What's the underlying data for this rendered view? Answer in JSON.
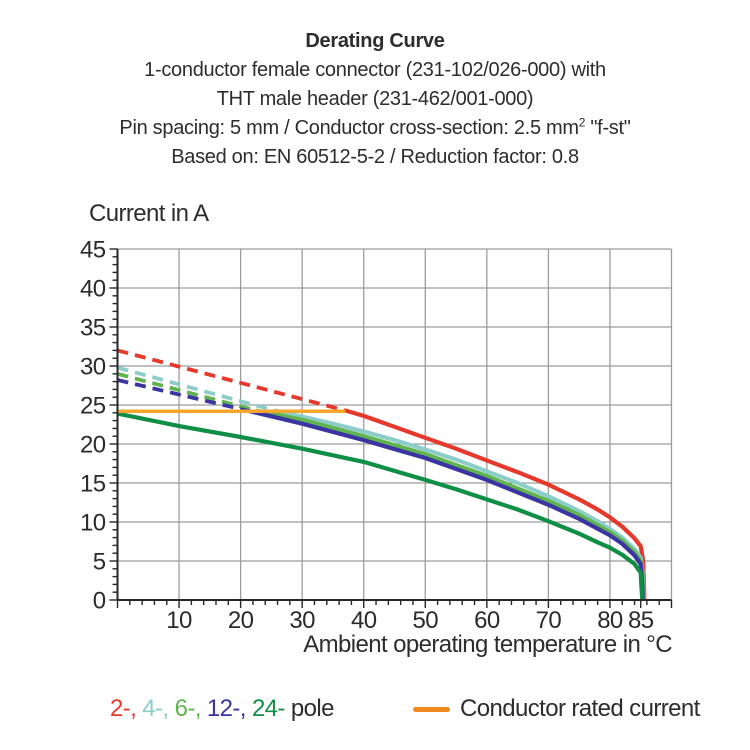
{
  "title": {
    "line1": "Derating Curve",
    "line2": "1-conductor female connector (231-102/026-000) with",
    "line3": "THT male header (231-462/001-000)",
    "line4_pre": "Pin spacing: 5 mm / Conductor cross-section: 2.5 mm",
    "line4_sup": "2",
    "line4_post": " \"f-st\"",
    "line5": "Based on: EN 60512-5-2 / Reduction factor: 0.8"
  },
  "chart_data": {
    "type": "line",
    "title": "Derating Curve",
    "ylabel": "Current in A",
    "xlabel": "Ambient operating temperature in °C",
    "xlim": [
      0,
      90
    ],
    "ylim": [
      0,
      45
    ],
    "x_ticks": [
      10,
      20,
      30,
      40,
      50,
      60,
      70,
      80,
      85
    ],
    "y_ticks": [
      0,
      5,
      10,
      15,
      20,
      25,
      30,
      35,
      40,
      45
    ],
    "x_gridline_step": 10,
    "y_gridline_step": 5,
    "x_minor_tick_step": 2,
    "y_minor_tick_step": 1,
    "grid": true,
    "grid_color": "#9c9c9c",
    "axis_color": "#262626",
    "rated_current": {
      "value": 24.2,
      "x_span": [
        0,
        37
      ],
      "color": "#f7a62b",
      "label": "Conductor rated current"
    },
    "series": [
      {
        "name": "2-pole",
        "color": "#e6392c",
        "dashed": [
          [
            0,
            32
          ],
          [
            37,
            24.3
          ]
        ],
        "solid": [
          [
            37,
            24.3
          ],
          [
            40,
            23.6
          ],
          [
            45,
            22.2
          ],
          [
            50,
            20.8
          ],
          [
            55,
            19.4
          ],
          [
            60,
            17.9
          ],
          [
            65,
            16.4
          ],
          [
            70,
            14.8
          ],
          [
            75,
            12.9
          ],
          [
            78,
            11.6
          ],
          [
            80,
            10.6
          ],
          [
            82,
            9.4
          ],
          [
            84,
            7.9
          ],
          [
            85,
            6.9
          ],
          [
            85.4,
            5
          ],
          [
            85.6,
            0
          ]
        ]
      },
      {
        "name": "4-pole",
        "color": "#8bcdc8",
        "dashed": [
          [
            0,
            29.8
          ],
          [
            25.5,
            24.3
          ]
        ],
        "solid": [
          [
            25.5,
            24.3
          ],
          [
            30,
            23.5
          ],
          [
            35,
            22.6
          ],
          [
            40,
            21.6
          ],
          [
            45,
            20.5
          ],
          [
            50,
            19.3
          ],
          [
            55,
            18
          ],
          [
            60,
            16.5
          ],
          [
            65,
            15
          ],
          [
            70,
            13.3
          ],
          [
            75,
            11.4
          ],
          [
            78,
            10.1
          ],
          [
            80,
            9.1
          ],
          [
            82,
            8
          ],
          [
            84,
            6.5
          ],
          [
            85,
            5.4
          ],
          [
            85.3,
            3.5
          ],
          [
            85.5,
            0
          ]
        ]
      },
      {
        "name": "6-pole",
        "color": "#5fb44e",
        "dashed": [
          [
            0,
            29
          ],
          [
            22.5,
            24.3
          ]
        ],
        "solid": [
          [
            22.5,
            24.3
          ],
          [
            30,
            23.1
          ],
          [
            40,
            21
          ],
          [
            50,
            18.7
          ],
          [
            60,
            15.9
          ],
          [
            70,
            12.7
          ],
          [
            75,
            10.9
          ],
          [
            80,
            8.7
          ],
          [
            82,
            7.6
          ],
          [
            84,
            6.1
          ],
          [
            85,
            5
          ],
          [
            85.25,
            3
          ],
          [
            85.4,
            0
          ]
        ]
      },
      {
        "name": "12-pole",
        "color": "#3a35a1",
        "dashed": [
          [
            0,
            28.2
          ],
          [
            21,
            24.3
          ]
        ],
        "solid": [
          [
            21,
            24.3
          ],
          [
            30,
            22.6
          ],
          [
            40,
            20.5
          ],
          [
            50,
            18.2
          ],
          [
            60,
            15.4
          ],
          [
            70,
            12.2
          ],
          [
            75,
            10.4
          ],
          [
            80,
            8.3
          ],
          [
            82,
            7.2
          ],
          [
            84,
            5.7
          ],
          [
            85,
            4.6
          ],
          [
            85.2,
            2.5
          ],
          [
            85.35,
            0
          ]
        ]
      },
      {
        "name": "24-pole",
        "color": "#0f8f45",
        "dashed": null,
        "solid": [
          [
            0,
            23.9
          ],
          [
            10,
            22.3
          ],
          [
            20,
            20.9
          ],
          [
            30,
            19.4
          ],
          [
            40,
            17.7
          ],
          [
            50,
            15.4
          ],
          [
            55,
            14.2
          ],
          [
            60,
            12.9
          ],
          [
            65,
            11.6
          ],
          [
            70,
            10.1
          ],
          [
            75,
            8.5
          ],
          [
            78,
            7.4
          ],
          [
            80,
            6.7
          ],
          [
            82,
            5.8
          ],
          [
            84,
            4.6
          ],
          [
            85,
            3.5
          ],
          [
            85.1,
            2
          ],
          [
            85.25,
            0
          ]
        ]
      }
    ]
  },
  "legend": {
    "poles": [
      {
        "label": "2-",
        "color": "#e6392c"
      },
      {
        "label": "4-",
        "color": "#8bcdc8"
      },
      {
        "label": "6-",
        "color": "#5fb44e"
      },
      {
        "label": "12-",
        "color": "#3a35a1"
      },
      {
        "label": "24-",
        "color": "#0f8f45"
      }
    ],
    "suffix": "pole",
    "rated_label": "Conductor rated current",
    "swatch_color": "#ef8a1e"
  }
}
